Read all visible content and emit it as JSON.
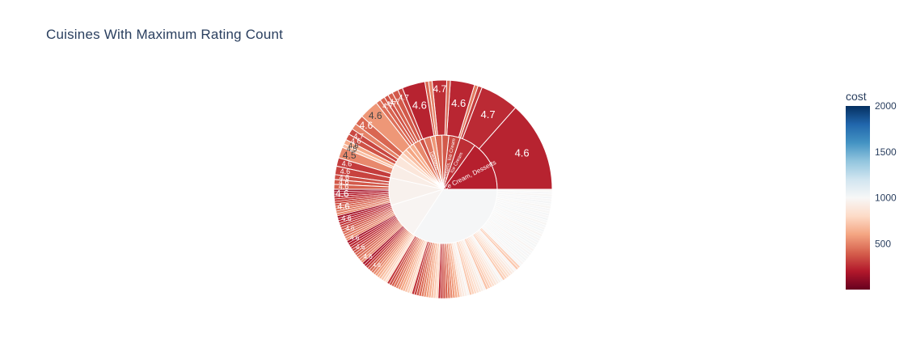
{
  "chart_data": {
    "type": "sunburst",
    "title": "Cuisines With Maximum Rating Count",
    "color_axis": {
      "title": "cost",
      "ticks": [
        500,
        1000,
        1500,
        2000
      ],
      "range": [
        0,
        2000
      ],
      "colorscale": [
        "#67001f",
        "#b2182b",
        "#d6604d",
        "#f4a582",
        "#fddbc7",
        "#f7f7f7",
        "#d1e5f0",
        "#92c5de",
        "#4393c3",
        "#2166ac",
        "#053061"
      ]
    },
    "inner_ring": [
      {
        "label": "Ice Cream, Desserts",
        "value": 11,
        "cost": 220
      },
      {
        "label": "Ice Cream",
        "value": 3.5,
        "cost": 260
      },
      {
        "label": "Desserts, Ice Cream",
        "value": 2.5,
        "cost": 330
      },
      {
        "label": "",
        "value": 1.5,
        "cost": 380
      },
      {
        "label": "",
        "value": 1.5,
        "cost": 430
      },
      {
        "label": "",
        "value": 1,
        "cost": 560
      },
      {
        "label": "Desserts",
        "value": 1.5,
        "cost": 470
      },
      {
        "label": "",
        "value": 1,
        "cost": 360
      },
      {
        "label": "",
        "value": 1.5,
        "cost": 520
      },
      {
        "label": "",
        "value": 1,
        "cost": 640
      },
      {
        "label": "",
        "value": 1,
        "cost": 600
      },
      {
        "label": "",
        "value": 1,
        "cost": 700
      },
      {
        "label": "",
        "value": 1,
        "cost": 800
      },
      {
        "label": "",
        "value": 2,
        "cost": 880
      },
      {
        "label": "",
        "value": 3,
        "cost": 930
      },
      {
        "label": "",
        "value": 6,
        "cost": 960
      },
      {
        "label": "",
        "value": 8,
        "cost": 980
      },
      {
        "label": "",
        "value": 25,
        "cost": 1010
      }
    ],
    "outer_ring": [
      {
        "label": "4.6",
        "value": 7.5,
        "cost": 230
      },
      {
        "label": "4.7",
        "value": 3.2,
        "cost": 250
      },
      {
        "label": "",
        "value": 0.35,
        "cost": 300
      },
      {
        "label": "",
        "value": 0.3,
        "cost": 480
      },
      {
        "label": "4.6",
        "value": 2.0,
        "cost": 240
      },
      {
        "label": "",
        "value": 0.3,
        "cost": 420
      },
      {
        "label": "4.7",
        "value": 1.2,
        "cost": 260
      },
      {
        "label": "",
        "value": 0.3,
        "cost": 500
      },
      {
        "label": "",
        "value": 0.3,
        "cost": 420
      },
      {
        "label": "4.6",
        "value": 1.9,
        "cost": 230
      },
      {
        "label": "4.7",
        "value": 0.4,
        "cost": 320
      },
      {
        "label": "",
        "value": 0.5,
        "cost": 380
      },
      {
        "label": "4.7",
        "value": 0.4,
        "cost": 400
      },
      {
        "label": "4.7",
        "value": 0.35,
        "cost": 360
      },
      {
        "label": "4.7",
        "value": 0.4,
        "cost": 410
      },
      {
        "label": "",
        "value": 0.4,
        "cost": 450
      },
      {
        "label": "4.6",
        "value": 1.6,
        "cost": 560
      },
      {
        "label": "4.6",
        "value": 0.8,
        "cost": 420
      },
      {
        "label": "",
        "value": 0.5,
        "cost": 500
      },
      {
        "label": "4.7",
        "value": 0.5,
        "cost": 330
      },
      {
        "label": "4.6",
        "value": 0.5,
        "cost": 360
      },
      {
        "label": "4.6",
        "value": 0.4,
        "cost": 620
      },
      {
        "label": "4.5",
        "value": 0.3,
        "cost": 700
      },
      {
        "label": "4.5",
        "value": 0.9,
        "cost": 520
      },
      {
        "label": "4.6",
        "value": 0.7,
        "cost": 300
      },
      {
        "label": "4.6",
        "value": 0.7,
        "cost": 320
      },
      {
        "label": "4.6",
        "value": 0.4,
        "cost": 350
      },
      {
        "label": "4.6",
        "value": 0.4,
        "cost": 380
      },
      {
        "label": "4.6",
        "value": 0.4,
        "cost": 400
      }
    ]
  }
}
